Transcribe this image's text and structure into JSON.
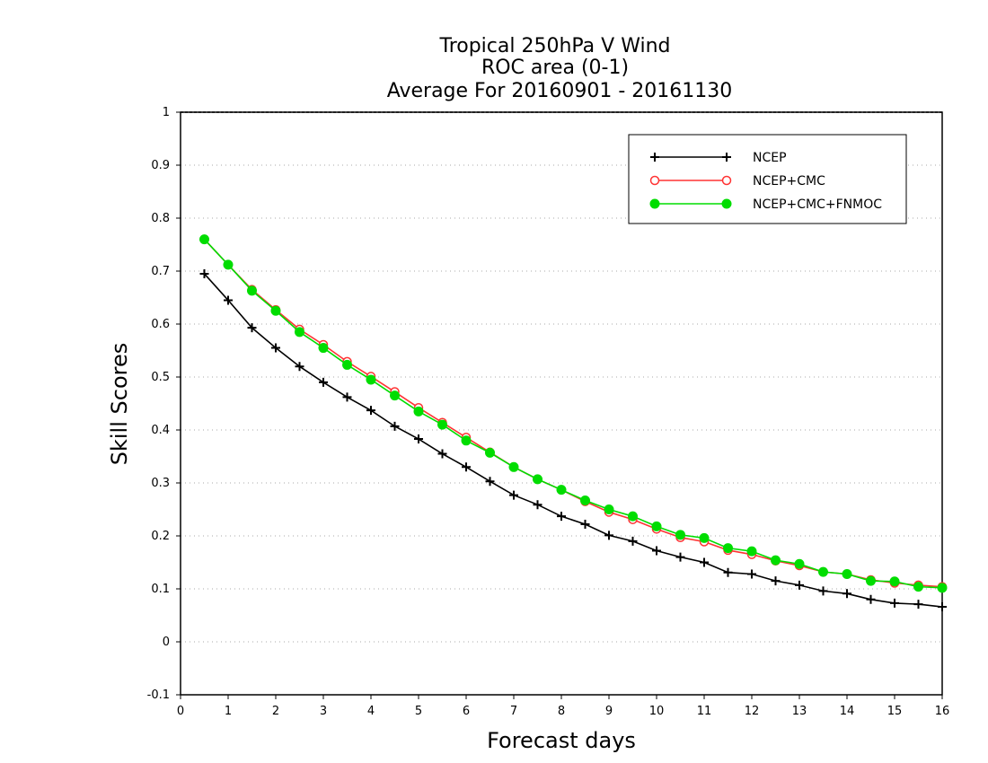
{
  "chart_data": {
    "type": "line",
    "title": [
      "Tropical 250hPa V Wind",
      "ROC area (0-1)",
      "Average For 20160901 - 20161130"
    ],
    "xlabel": "Forecast days",
    "ylabel": "Skill Scores",
    "xlim": [
      0,
      16
    ],
    "ylim": [
      -0.1,
      1
    ],
    "xticks": [
      0,
      1,
      2,
      3,
      4,
      5,
      6,
      7,
      8,
      9,
      10,
      11,
      12,
      13,
      14,
      15,
      16
    ],
    "yticks": [
      -0.1,
      0,
      0.1,
      0.2,
      0.3,
      0.4,
      0.5,
      0.6,
      0.7,
      0.8,
      0.9,
      1
    ],
    "ytick_labels": [
      "-0.1",
      "0",
      "0.1",
      "0.2",
      "0.3",
      "0.4",
      "0.5",
      "0.6",
      "0.7",
      "0.8",
      "0.9",
      "1"
    ],
    "grid": true,
    "legend_position": "top-right",
    "x": [
      0.5,
      1,
      1.5,
      2,
      2.5,
      3,
      3.5,
      4,
      4.5,
      5,
      5.5,
      6,
      6.5,
      7,
      7.5,
      8,
      8.5,
      9,
      9.5,
      10,
      10.5,
      11,
      11.5,
      12,
      12.5,
      13,
      13.5,
      14,
      14.5,
      15,
      15.5,
      16
    ],
    "series": [
      {
        "name": "NCEP",
        "color": "#000000",
        "marker": "plus",
        "values": [
          0.695,
          0.645,
          0.593,
          0.555,
          0.52,
          0.49,
          0.462,
          0.437,
          0.407,
          0.383,
          0.355,
          0.33,
          0.303,
          0.277,
          0.259,
          0.237,
          0.222,
          0.201,
          0.19,
          0.172,
          0.16,
          0.15,
          0.131,
          0.128,
          0.115,
          0.107,
          0.096,
          0.091,
          0.08,
          0.073,
          0.071,
          0.066
        ]
      },
      {
        "name": "NCEP+CMC",
        "color": "#ff3333",
        "marker": "open-circle",
        "values": [
          0.76,
          0.712,
          0.665,
          0.627,
          0.59,
          0.561,
          0.529,
          0.501,
          0.472,
          0.442,
          0.414,
          0.386,
          0.358,
          0.33,
          0.307,
          0.287,
          0.265,
          0.245,
          0.231,
          0.213,
          0.197,
          0.189,
          0.173,
          0.165,
          0.153,
          0.144,
          0.132,
          0.128,
          0.117,
          0.111,
          0.107,
          0.104
        ]
      },
      {
        "name": "NCEP+CMC+FNMOC",
        "color": "#00dd00",
        "marker": "filled-circle",
        "values": [
          0.76,
          0.712,
          0.663,
          0.625,
          0.585,
          0.555,
          0.523,
          0.495,
          0.465,
          0.435,
          0.41,
          0.38,
          0.357,
          0.33,
          0.307,
          0.287,
          0.267,
          0.25,
          0.237,
          0.218,
          0.202,
          0.196,
          0.177,
          0.171,
          0.154,
          0.147,
          0.132,
          0.128,
          0.115,
          0.114,
          0.104,
          0.102
        ]
      }
    ]
  }
}
